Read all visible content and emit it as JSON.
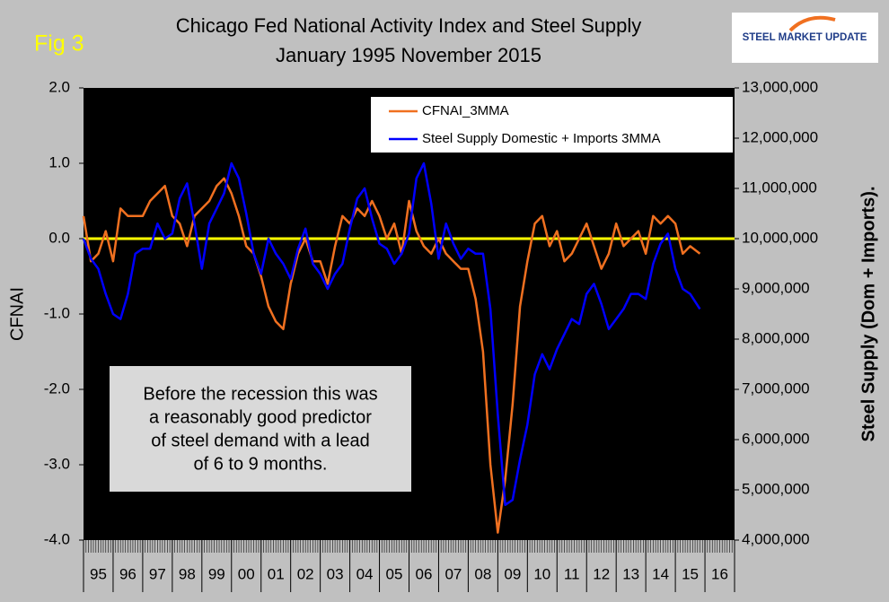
{
  "chart_data": {
    "type": "line",
    "figure_label": "Fig 3",
    "title": "Chicago Fed National Activity Index and Steel Supply",
    "subtitle": "January 1995 November 2015",
    "logo": "STEEL MARKET UPDATE",
    "y_label": "CFNAI",
    "y2_label": "Steel Supply (Dom + Imports).",
    "annotation": [
      "Before the recession this was",
      "a reasonably good predictor",
      "of steel demand with a lead",
      "of 6 to 9 months."
    ],
    "xlim": [
      1995,
      2017
    ],
    "xticks": [
      {
        "value": 1995,
        "label": "95"
      },
      {
        "value": 1996,
        "label": "96"
      },
      {
        "value": 1997,
        "label": "97"
      },
      {
        "value": 1998,
        "label": "98"
      },
      {
        "value": 1999,
        "label": "99"
      },
      {
        "value": 2000,
        "label": "00"
      },
      {
        "value": 2001,
        "label": "01"
      },
      {
        "value": 2002,
        "label": "02"
      },
      {
        "value": 2003,
        "label": "03"
      },
      {
        "value": 2004,
        "label": "04"
      },
      {
        "value": 2005,
        "label": "05"
      },
      {
        "value": 2006,
        "label": "06"
      },
      {
        "value": 2007,
        "label": "07"
      },
      {
        "value": 2008,
        "label": "08"
      },
      {
        "value": 2009,
        "label": "09"
      },
      {
        "value": 2010,
        "label": "10"
      },
      {
        "value": 2011,
        "label": "11"
      },
      {
        "value": 2012,
        "label": "12"
      },
      {
        "value": 2013,
        "label": "13"
      },
      {
        "value": 2014,
        "label": "14"
      },
      {
        "value": 2015,
        "label": "15"
      },
      {
        "value": 2016,
        "label": "16"
      }
    ],
    "ylim": [
      -4,
      2
    ],
    "yticks": [
      {
        "value": -4,
        "label": "-4.0"
      },
      {
        "value": -3,
        "label": "-3.0"
      },
      {
        "value": -2,
        "label": "-2.0"
      },
      {
        "value": -1,
        "label": "-1.0"
      },
      {
        "value": 0,
        "label": "0.0"
      },
      {
        "value": 1,
        "label": "1.0"
      },
      {
        "value": 2,
        "label": "2.0"
      }
    ],
    "y2lim": [
      4000000,
      13000000
    ],
    "y2ticks": [
      {
        "value": 4000000,
        "label": "4,000,000"
      },
      {
        "value": 5000000,
        "label": "5,000,000"
      },
      {
        "value": 6000000,
        "label": "6,000,000"
      },
      {
        "value": 7000000,
        "label": "7,000,000"
      },
      {
        "value": 8000000,
        "label": "8,000,000"
      },
      {
        "value": 9000000,
        "label": "9,000,000"
      },
      {
        "value": 10000000,
        "label": "10,000,000"
      },
      {
        "value": 11000000,
        "label": "11,000,000"
      },
      {
        "value": 12000000,
        "label": "12,000,000"
      },
      {
        "value": 13000000,
        "label": "13,000,000"
      }
    ],
    "reference_line": {
      "y": 0,
      "color": "#ffff00"
    },
    "x": [
      1995,
      1995.25,
      1995.5,
      1995.75,
      1996,
      1996.25,
      1996.5,
      1996.75,
      1997,
      1997.25,
      1997.5,
      1997.75,
      1998,
      1998.25,
      1998.5,
      1998.75,
      1999,
      1999.25,
      1999.5,
      1999.75,
      2000,
      2000.25,
      2000.5,
      2000.75,
      2001,
      2001.25,
      2001.5,
      2001.75,
      2002,
      2002.25,
      2002.5,
      2002.75,
      2003,
      2003.25,
      2003.5,
      2003.75,
      2004,
      2004.25,
      2004.5,
      2004.75,
      2005,
      2005.25,
      2005.5,
      2005.75,
      2006,
      2006.25,
      2006.5,
      2006.75,
      2007,
      2007.25,
      2007.5,
      2007.75,
      2008,
      2008.25,
      2008.5,
      2008.75,
      2009,
      2009.25,
      2009.5,
      2009.75,
      2010,
      2010.25,
      2010.5,
      2010.75,
      2011,
      2011.25,
      2011.5,
      2011.75,
      2012,
      2012.25,
      2012.5,
      2012.75,
      2013,
      2013.25,
      2013.5,
      2013.75,
      2014,
      2014.25,
      2014.5,
      2014.75,
      2015,
      2015.25,
      2015.5,
      2015.83
    ],
    "series": [
      {
        "name": "CFNAI_3MMA",
        "color": "#f07020",
        "values": [
          0.3,
          -0.3,
          -0.2,
          0.1,
          -0.3,
          0.4,
          0.3,
          0.3,
          0.3,
          0.5,
          0.6,
          0.7,
          0.3,
          0.2,
          -0.1,
          0.3,
          0.4,
          0.5,
          0.7,
          0.8,
          0.6,
          0.3,
          -0.1,
          -0.2,
          -0.5,
          -0.9,
          -1.1,
          -1.2,
          -0.6,
          -0.2,
          0.0,
          -0.3,
          -0.3,
          -0.6,
          -0.1,
          0.3,
          0.2,
          0.4,
          0.3,
          0.5,
          0.3,
          0.0,
          0.2,
          -0.2,
          0.5,
          0.1,
          -0.1,
          -0.2,
          0.0,
          -0.2,
          -0.3,
          -0.4,
          -0.4,
          -0.8,
          -1.5,
          -3.0,
          -3.9,
          -3.2,
          -2.2,
          -0.9,
          -0.3,
          0.2,
          0.3,
          -0.1,
          0.1,
          -0.3,
          -0.2,
          0.0,
          0.2,
          -0.1,
          -0.4,
          -0.2,
          0.2,
          -0.1,
          0.0,
          0.1,
          -0.2,
          0.3,
          0.2,
          0.3,
          0.2,
          -0.2,
          -0.1,
          -0.2
        ]
      },
      {
        "name": "Steel Supply Domestic + Imports 3MMA",
        "color": "#0000ff",
        "axis": "y2",
        "values": [
          10000000,
          9600000,
          9400000,
          8900000,
          8500000,
          8400000,
          8900000,
          9700000,
          9800000,
          9800000,
          10300000,
          10000000,
          10100000,
          10800000,
          11100000,
          10300000,
          9400000,
          10300000,
          10600000,
          10900000,
          11500000,
          11200000,
          10500000,
          9700000,
          9300000,
          10000000,
          9700000,
          9500000,
          9200000,
          9800000,
          10200000,
          9500000,
          9300000,
          9000000,
          9300000,
          9500000,
          10200000,
          10800000,
          11000000,
          10400000,
          9900000,
          9800000,
          9500000,
          9700000,
          10100000,
          11200000,
          11500000,
          10700000,
          9600000,
          10300000,
          9900000,
          9600000,
          9800000,
          9700000,
          9700000,
          8600000,
          6500000,
          4700000,
          4800000,
          5600000,
          6300000,
          7300000,
          7700000,
          7400000,
          7800000,
          8100000,
          8400000,
          8300000,
          8900000,
          9100000,
          8700000,
          8200000,
          8400000,
          8600000,
          8900000,
          8900000,
          8800000,
          9500000,
          9900000,
          10100000,
          9400000,
          9000000,
          8900000,
          8600000
        ]
      }
    ]
  }
}
